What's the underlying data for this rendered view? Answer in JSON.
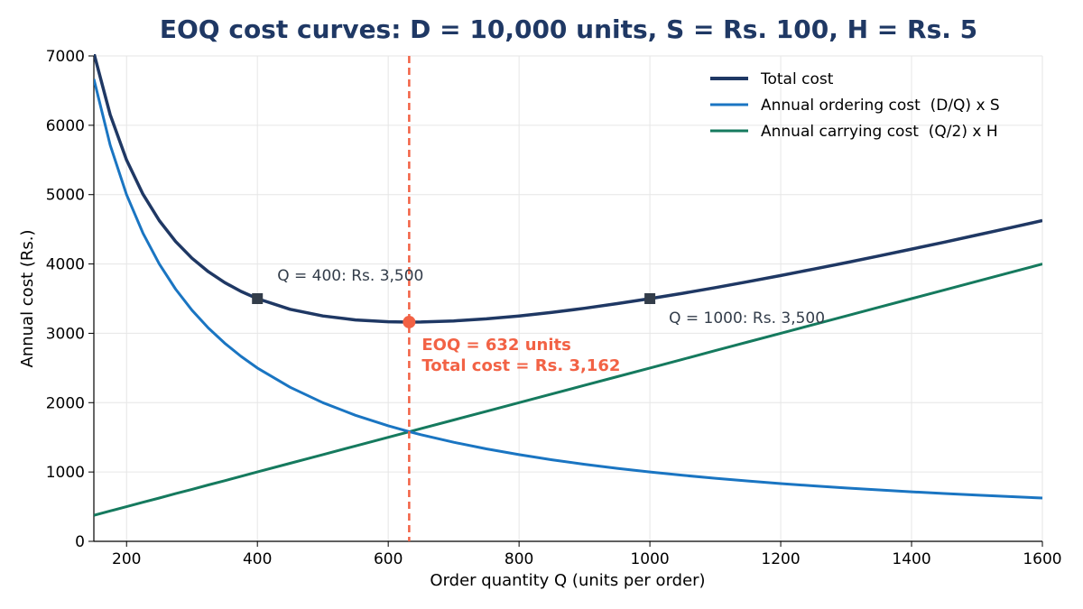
{
  "chart_data": {
    "type": "line",
    "title": "EOQ cost curves: D = 10,000 units, S = Rs. 100, H = Rs. 5",
    "xlabel": "Order quantity Q (units per order)",
    "ylabel": "Annual cost (Rs.)",
    "xlim": [
      150,
      1600
    ],
    "ylim": [
      0,
      7000
    ],
    "xticks": [
      200,
      400,
      600,
      800,
      1000,
      1200,
      1400,
      1600
    ],
    "yticks": [
      0,
      1000,
      2000,
      3000,
      4000,
      5000,
      6000,
      7000
    ],
    "grid": true,
    "legend_position": "top-right",
    "x": [
      150,
      175,
      200,
      225,
      250,
      275,
      300,
      325,
      350,
      375,
      400,
      450,
      500,
      550,
      600,
      632,
      650,
      700,
      750,
      800,
      850,
      900,
      950,
      1000,
      1050,
      1100,
      1150,
      1200,
      1250,
      1300,
      1350,
      1400,
      1450,
      1500,
      1550,
      1600
    ],
    "series": [
      {
        "name": "Total cost",
        "color": "#1f3864",
        "values": [
          7042,
          6152,
          5500,
          5007,
          4625,
          4324,
          4083,
          3889,
          3732,
          3604,
          3500,
          3347,
          3250,
          3193,
          3167,
          3162,
          3163,
          3179,
          3208,
          3250,
          3301,
          3361,
          3428,
          3500,
          3577,
          3659,
          3745,
          3833,
          3925,
          4019,
          4116,
          4214,
          4315,
          4417,
          4520,
          4625
        ]
      },
      {
        "name": "Annual ordering cost  (D/Q) x S",
        "color": "#1a75c2",
        "values": [
          6667,
          5714,
          5000,
          4444,
          4000,
          3636,
          3333,
          3077,
          2857,
          2667,
          2500,
          2222,
          2000,
          1818,
          1667,
          1582,
          1538,
          1429,
          1333,
          1250,
          1176,
          1111,
          1053,
          1000,
          952,
          909,
          870,
          833,
          800,
          769,
          741,
          714,
          690,
          667,
          645,
          625
        ]
      },
      {
        "name": "Annual carrying cost  (Q/2) x H",
        "color": "#157a5e",
        "values": [
          375,
          438,
          500,
          563,
          625,
          688,
          750,
          813,
          875,
          938,
          1000,
          1125,
          1250,
          1375,
          1500,
          1580,
          1625,
          1750,
          1875,
          2000,
          2125,
          2250,
          2375,
          2500,
          2625,
          2750,
          2875,
          3000,
          3125,
          3250,
          3375,
          3500,
          3625,
          3750,
          3875,
          4000
        ]
      }
    ],
    "eoq": {
      "x": 632,
      "y": 3162,
      "color": "#f26245",
      "label_line1": "EOQ = 632 units",
      "label_line2": "Total cost = Rs. 3,162"
    },
    "markers": [
      {
        "x": 400,
        "y": 3500,
        "label": "Q = 400: Rs. 3,500"
      },
      {
        "x": 1000,
        "y": 3500,
        "label": "Q = 1000: Rs. 3,500"
      }
    ]
  }
}
